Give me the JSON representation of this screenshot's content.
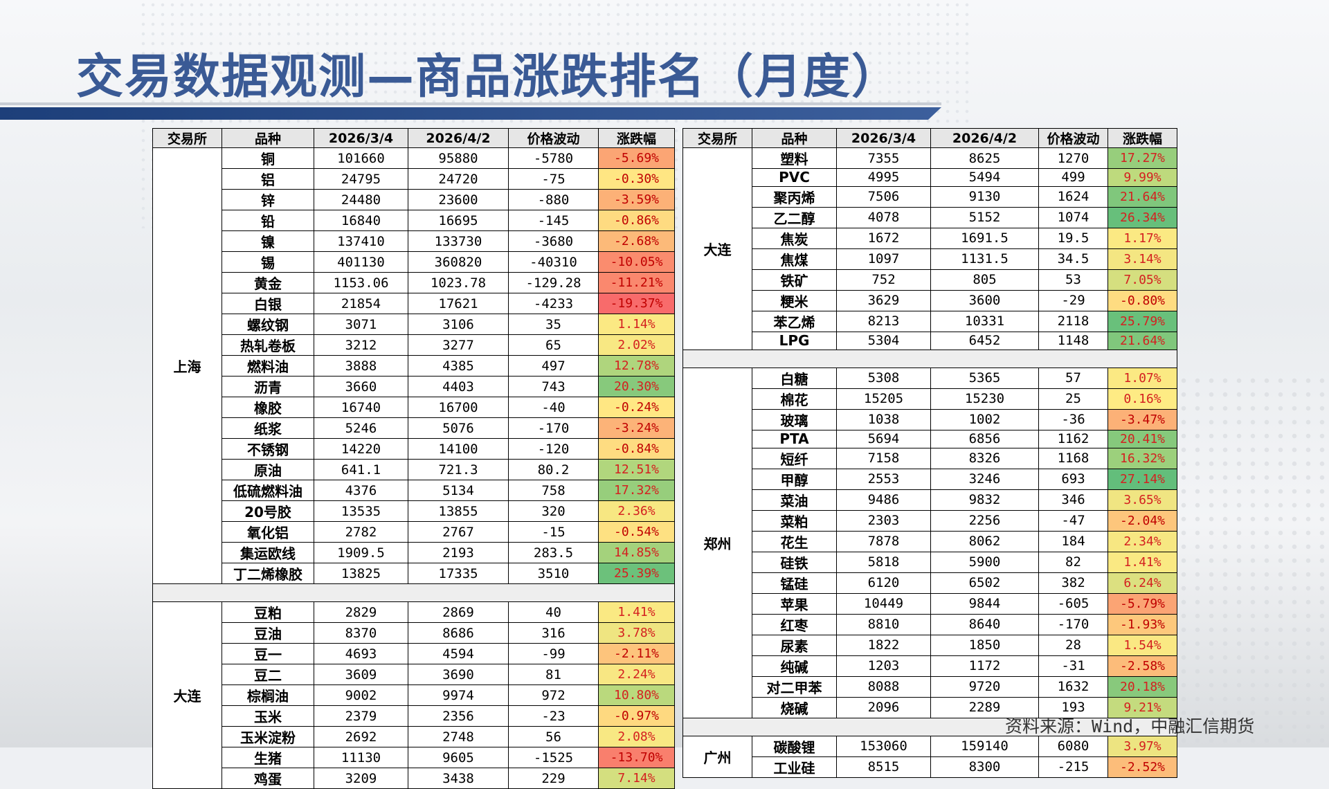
{
  "title": "交易数据观测—商品涨跌排名（月度）",
  "source": "资料来源：Wind，中融汇信期货",
  "headers": [
    "交易所",
    "品种",
    "2026/3/4",
    "2026/4/2",
    "价格波动",
    "涨跌幅"
  ],
  "left": [
    {
      "exchange": "上海",
      "rows": [
        [
          "铜",
          "101660",
          "95880",
          "-5780",
          "-5.69%"
        ],
        [
          "铝",
          "24795",
          "24720",
          "-75",
          "-0.30%"
        ],
        [
          "锌",
          "24480",
          "23600",
          "-880",
          "-3.59%"
        ],
        [
          "铅",
          "16840",
          "16695",
          "-145",
          "-0.86%"
        ],
        [
          "镍",
          "137410",
          "133730",
          "-3680",
          "-2.68%"
        ],
        [
          "锡",
          "401130",
          "360820",
          "-40310",
          "-10.05%"
        ],
        [
          "黄金",
          "1153.06",
          "1023.78",
          "-129.28",
          "-11.21%"
        ],
        [
          "白银",
          "21854",
          "17621",
          "-4233",
          "-19.37%"
        ],
        [
          "螺纹钢",
          "3071",
          "3106",
          "35",
          "1.14%"
        ],
        [
          "热轧卷板",
          "3212",
          "3277",
          "65",
          "2.02%"
        ],
        [
          "燃料油",
          "3888",
          "4385",
          "497",
          "12.78%"
        ],
        [
          "沥青",
          "3660",
          "4403",
          "743",
          "20.30%"
        ],
        [
          "橡胶",
          "16740",
          "16700",
          "-40",
          "-0.24%"
        ],
        [
          "纸浆",
          "5246",
          "5076",
          "-170",
          "-3.24%"
        ],
        [
          "不锈钢",
          "14220",
          "14100",
          "-120",
          "-0.84%"
        ],
        [
          "原油",
          "641.1",
          "721.3",
          "80.2",
          "12.51%"
        ],
        [
          "低硫燃料油",
          "4376",
          "5134",
          "758",
          "17.32%"
        ],
        [
          "20号胶",
          "13535",
          "13855",
          "320",
          "2.36%"
        ],
        [
          "氧化铝",
          "2782",
          "2767",
          "-15",
          "-0.54%"
        ],
        [
          "集运欧线",
          "1909.5",
          "2193",
          "283.5",
          "14.85%"
        ],
        [
          "丁二烯橡胶",
          "13825",
          "17335",
          "3510",
          "25.39%"
        ]
      ]
    },
    {
      "exchange": "大连",
      "rows": [
        [
          "豆粕",
          "2829",
          "2869",
          "40",
          "1.41%"
        ],
        [
          "豆油",
          "8370",
          "8686",
          "316",
          "3.78%"
        ],
        [
          "豆一",
          "4693",
          "4594",
          "-99",
          "-2.11%"
        ],
        [
          "豆二",
          "3609",
          "3690",
          "81",
          "2.24%"
        ],
        [
          "棕榈油",
          "9002",
          "9974",
          "972",
          "10.80%"
        ],
        [
          "玉米",
          "2379",
          "2356",
          "-23",
          "-0.97%"
        ],
        [
          "玉米淀粉",
          "2692",
          "2748",
          "56",
          "2.08%"
        ],
        [
          "生猪",
          "11130",
          "9605",
          "-1525",
          "-13.70%"
        ],
        [
          "鸡蛋",
          "3209",
          "3438",
          "229",
          "7.14%"
        ]
      ]
    }
  ],
  "right": [
    {
      "exchange": "大连",
      "rows": [
        [
          "塑料",
          "7355",
          "8625",
          "1270",
          "17.27%"
        ],
        [
          "PVC",
          "4995",
          "5494",
          "499",
          "9.99%"
        ],
        [
          "聚丙烯",
          "7506",
          "9130",
          "1624",
          "21.64%"
        ],
        [
          "乙二醇",
          "4078",
          "5152",
          "1074",
          "26.34%"
        ],
        [
          "焦炭",
          "1672",
          "1691.5",
          "19.5",
          "1.17%"
        ],
        [
          "焦煤",
          "1097",
          "1131.5",
          "34.5",
          "3.14%"
        ],
        [
          "铁矿",
          "752",
          "805",
          "53",
          "7.05%"
        ],
        [
          "粳米",
          "3629",
          "3600",
          "-29",
          "-0.80%"
        ],
        [
          "苯乙烯",
          "8213",
          "10331",
          "2118",
          "25.79%"
        ],
        [
          "LPG",
          "5304",
          "6452",
          "1148",
          "21.64%"
        ]
      ]
    },
    {
      "exchange": "郑州",
      "rows": [
        [
          "白糖",
          "5308",
          "5365",
          "57",
          "1.07%"
        ],
        [
          "棉花",
          "15205",
          "15230",
          "25",
          "0.16%"
        ],
        [
          "玻璃",
          "1038",
          "1002",
          "-36",
          "-3.47%"
        ],
        [
          "PTA",
          "5694",
          "6856",
          "1162",
          "20.41%"
        ],
        [
          "短纤",
          "7158",
          "8326",
          "1168",
          "16.32%"
        ],
        [
          "甲醇",
          "2553",
          "3246",
          "693",
          "27.14%"
        ],
        [
          "菜油",
          "9486",
          "9832",
          "346",
          "3.65%"
        ],
        [
          "菜粕",
          "2303",
          "2256",
          "-47",
          "-2.04%"
        ],
        [
          "花生",
          "7878",
          "8062",
          "184",
          "2.34%"
        ],
        [
          "硅铁",
          "5818",
          "5900",
          "82",
          "1.41%"
        ],
        [
          "锰硅",
          "6120",
          "6502",
          "382",
          "6.24%"
        ],
        [
          "苹果",
          "10449",
          "9844",
          "-605",
          "-5.79%"
        ],
        [
          "红枣",
          "8810",
          "8640",
          "-170",
          "-1.93%"
        ],
        [
          "尿素",
          "1822",
          "1850",
          "28",
          "1.54%"
        ],
        [
          "纯碱",
          "1203",
          "1172",
          "-31",
          "-2.58%"
        ],
        [
          "对二甲苯",
          "8088",
          "9720",
          "1632",
          "20.18%"
        ],
        [
          "烧碱",
          "2096",
          "2289",
          "193",
          "9.21%"
        ]
      ]
    },
    {
      "exchange": "广州",
      "rows": [
        [
          "碳酸锂",
          "153060",
          "159140",
          "6080",
          "3.97%"
        ],
        [
          "工业硅",
          "8515",
          "8300",
          "-215",
          "-2.52%"
        ]
      ]
    }
  ]
}
